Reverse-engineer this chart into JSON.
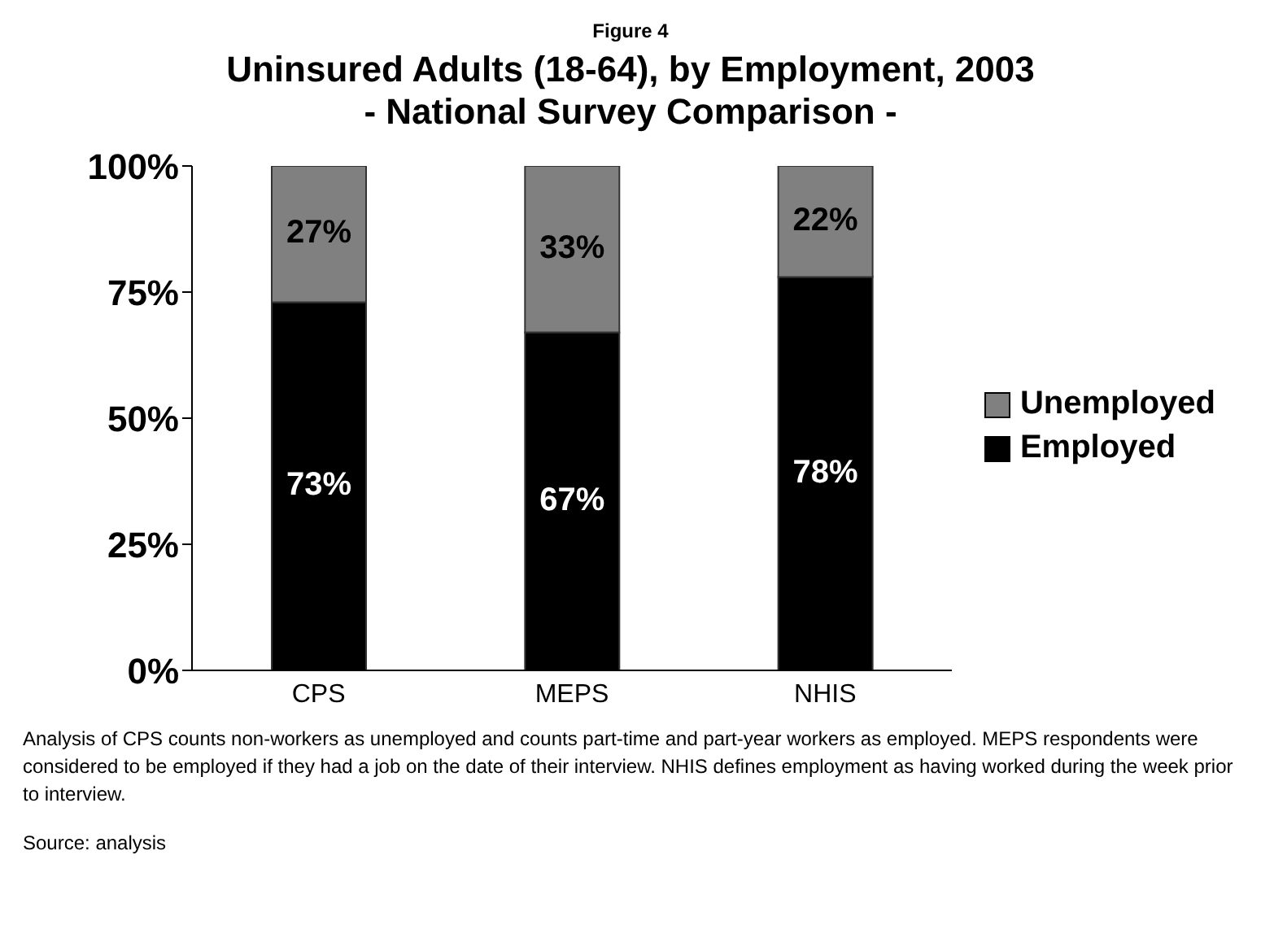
{
  "chart_data": {
    "type": "bar",
    "title": "Uninsured Adults (18-64), by Employment, 2003",
    "subtitle": "- National Survey Comparison -",
    "stacked": true,
    "categories": [
      "CPS",
      "MEPS",
      "NHIS"
    ],
    "series": [
      {
        "name": "Employed",
        "color": "#000000",
        "values": [
          73,
          67,
          78
        ],
        "value_labels": [
          "73%",
          "67%",
          "78%"
        ]
      },
      {
        "name": "Unemployed",
        "color": "#808080",
        "values": [
          27,
          33,
          22
        ],
        "value_labels": [
          "27%",
          "33%",
          "22%"
        ]
      }
    ],
    "ylim": [
      0,
      100
    ],
    "yticks": [
      {
        "value": 0,
        "label": "0%"
      },
      {
        "value": 25,
        "label": "25%"
      },
      {
        "value": 50,
        "label": "50%"
      },
      {
        "value": 75,
        "label": "75%"
      },
      {
        "value": 100,
        "label": "100%"
      }
    ],
    "grid": false,
    "legend": "right",
    "annotations": [
      "Figure 4",
      "Analysis of CPS counts non-workers as unemployed and counts part-time and part-year workers as employed. MEPS respondents were considered to be employed if they had a job on the date of their interview. NHIS defines employment as having worked during the week prior to interview.",
      "Source: analysis"
    ]
  }
}
